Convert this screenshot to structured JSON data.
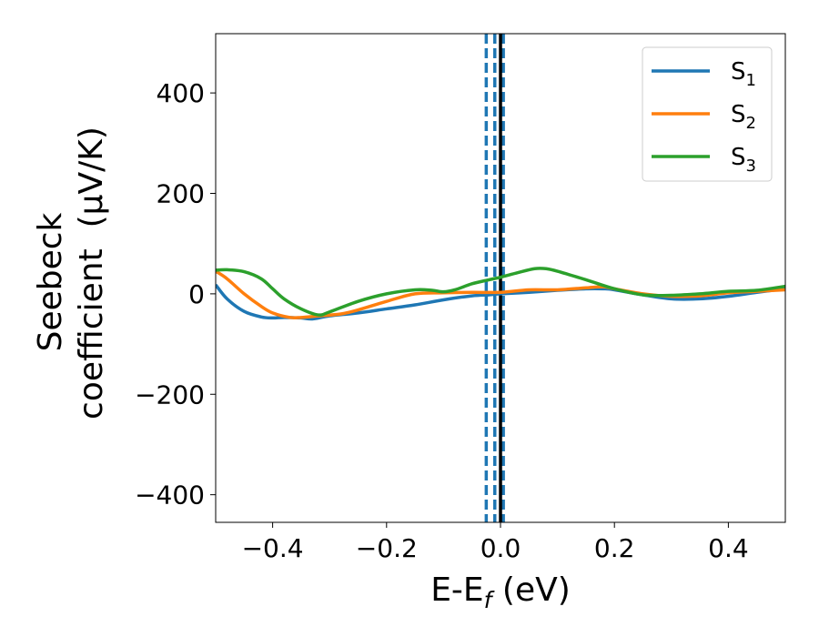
{
  "chart_data": {
    "type": "line",
    "title": "",
    "xlabel": {
      "main": "E-E",
      "sub": "f",
      "unit": " (eV)"
    },
    "ylabel": {
      "line1": "Seebeck",
      "line2": "coefficient  (μV/K)"
    },
    "xlim": [
      -0.5,
      0.5
    ],
    "ylim": [
      -455,
      518
    ],
    "xticks": [
      -0.4,
      -0.2,
      0.0,
      0.2,
      0.4
    ],
    "xtick_labels": [
      "−0.4",
      "−0.2",
      "0.0",
      "0.2",
      "0.4"
    ],
    "yticks": [
      -400,
      -200,
      0,
      200,
      400
    ],
    "ytick_labels": [
      "−400",
      "−200",
      "0",
      "200",
      "400"
    ],
    "grid": false,
    "legend_position": "top-right",
    "series": [
      {
        "name": "S",
        "sub": "1",
        "color": "#1f77b4",
        "x": [
          -0.5,
          -0.48,
          -0.45,
          -0.42,
          -0.4,
          -0.38,
          -0.35,
          -0.33,
          -0.3,
          -0.25,
          -0.2,
          -0.15,
          -0.1,
          -0.05,
          -0.02,
          0.0,
          0.05,
          0.1,
          0.15,
          0.18,
          0.2,
          0.25,
          0.3,
          0.35,
          0.4,
          0.45,
          0.5
        ],
        "y": [
          18,
          -10,
          -35,
          -46,
          -48,
          -47,
          -48,
          -50,
          -44,
          -38,
          -30,
          -22,
          -12,
          -4,
          -2,
          0,
          3,
          7,
          10,
          10,
          8,
          -2,
          -10,
          -10,
          -5,
          3,
          10
        ]
      },
      {
        "name": "S",
        "sub": "2",
        "color": "#ff7f0e",
        "x": [
          -0.5,
          -0.48,
          -0.45,
          -0.42,
          -0.4,
          -0.37,
          -0.35,
          -0.32,
          -0.28,
          -0.25,
          -0.2,
          -0.15,
          -0.1,
          -0.05,
          0.0,
          0.05,
          0.1,
          0.15,
          0.18,
          0.2,
          0.25,
          0.3,
          0.35,
          0.4,
          0.45,
          0.5
        ],
        "y": [
          45,
          30,
          0,
          -25,
          -38,
          -47,
          -47,
          -44,
          -40,
          -32,
          -15,
          0,
          2,
          3,
          3,
          8,
          8,
          12,
          14,
          10,
          0,
          -5,
          -4,
          2,
          5,
          8
        ]
      },
      {
        "name": "S",
        "sub": "3",
        "color": "#2ca02c",
        "x": [
          -0.5,
          -0.48,
          -0.45,
          -0.42,
          -0.4,
          -0.38,
          -0.35,
          -0.32,
          -0.3,
          -0.25,
          -0.2,
          -0.15,
          -0.12,
          -0.1,
          -0.08,
          -0.05,
          -0.02,
          0.0,
          0.03,
          0.06,
          0.08,
          0.1,
          0.15,
          0.2,
          0.25,
          0.3,
          0.35,
          0.4,
          0.45,
          0.5
        ],
        "y": [
          47,
          48,
          44,
          30,
          10,
          -10,
          -30,
          -42,
          -36,
          -15,
          0,
          8,
          7,
          4,
          8,
          20,
          28,
          33,
          42,
          50,
          50,
          45,
          28,
          10,
          -2,
          -3,
          0,
          5,
          7,
          15
        ]
      }
    ],
    "vlines": [
      {
        "x": -0.025,
        "style": "dashed",
        "color": "#1f77b4"
      },
      {
        "x": -0.01,
        "style": "dashed",
        "color": "#1f77b4"
      },
      {
        "x": 0.005,
        "style": "dashed",
        "color": "#1f77b4"
      },
      {
        "x": 0.0,
        "style": "solid",
        "color": "#000000"
      }
    ]
  }
}
